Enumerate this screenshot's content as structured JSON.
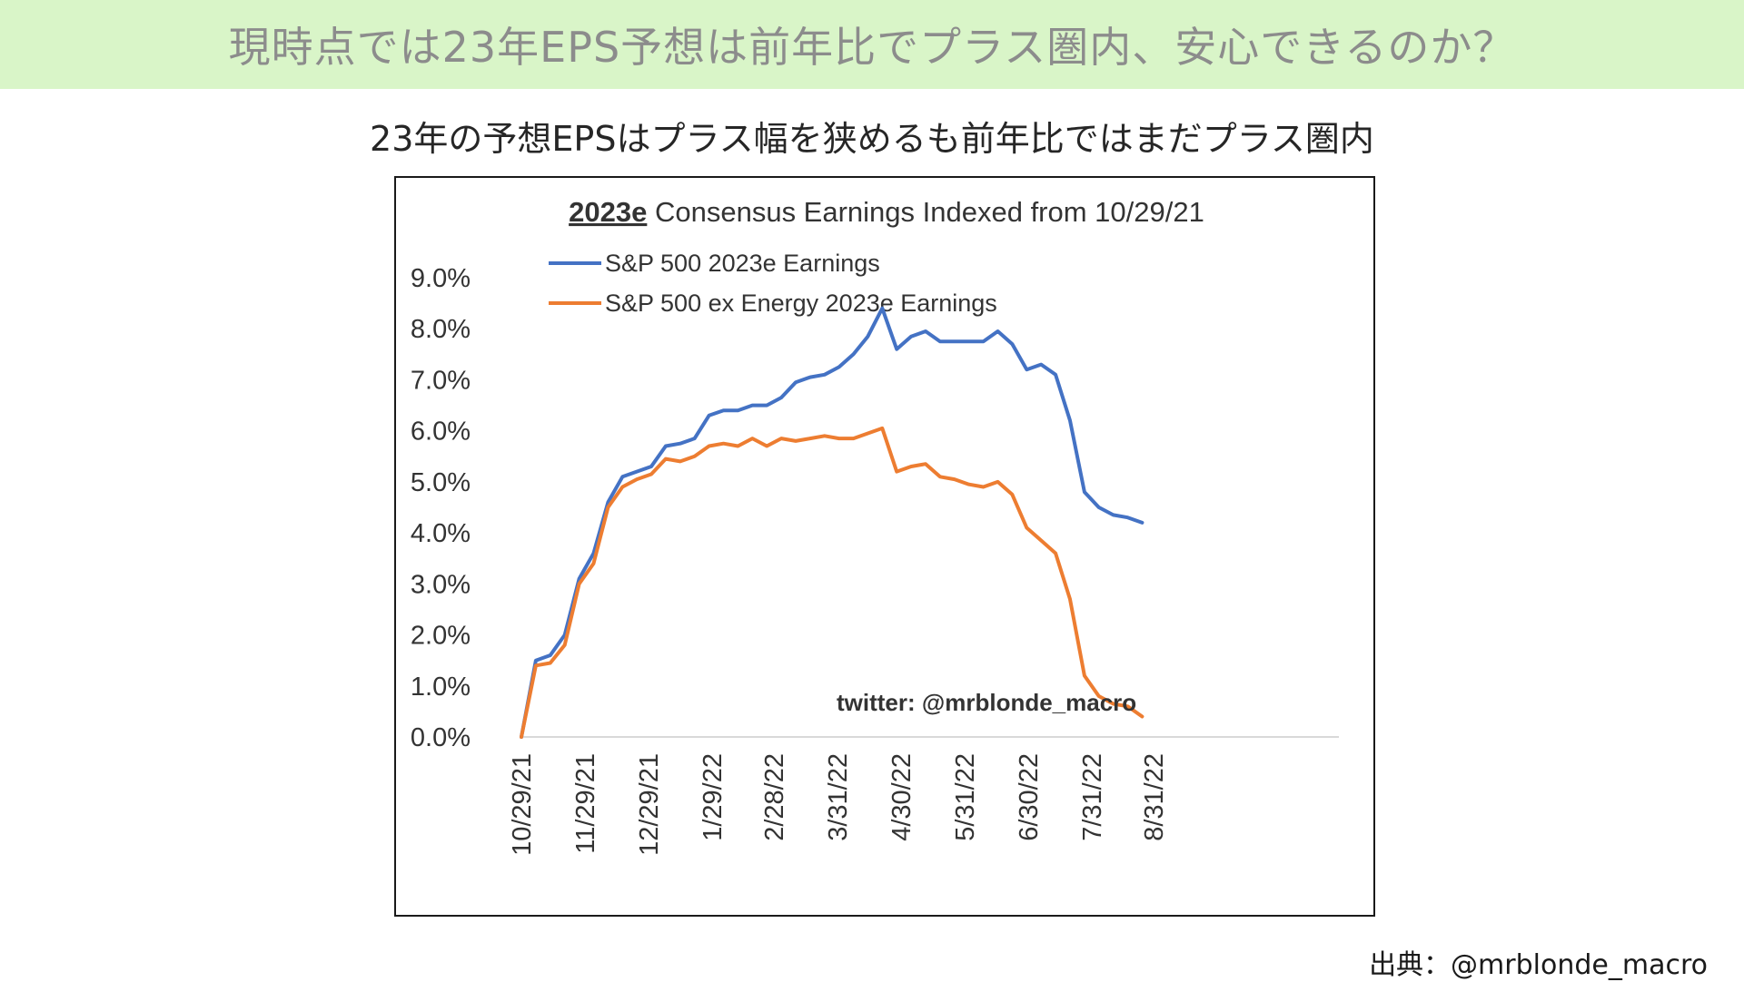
{
  "slide": {
    "banner_title": "現時点では23年EPS予想は前年比でプラス圏内、安心できるのか？",
    "subtitle": "23年の予想EPSはプラス幅を狭めるも前年比ではまだプラス圏内",
    "source": "出典：@mrblonde_macro"
  },
  "chart_data": {
    "type": "line",
    "title_bold": "2023e",
    "title_rest": " Consensus Earnings Indexed from 10/29/21",
    "watermark": "twitter: @mrblonde_macro",
    "x_tick_labels": [
      "10/29/21",
      "11/29/21",
      "12/29/21",
      "1/29/22",
      "2/28/22",
      "3/31/22",
      "4/30/22",
      "5/31/22",
      "6/30/22",
      "7/31/22",
      "8/31/22"
    ],
    "x_tick_index": [
      0,
      4.4,
      8.8,
      13.2,
      17.5,
      21.9,
      26.3,
      30.7,
      35.1,
      39.5,
      43.8
    ],
    "yticks": [
      "0.0%",
      "1.0%",
      "2.0%",
      "3.0%",
      "4.0%",
      "5.0%",
      "6.0%",
      "7.0%",
      "8.0%",
      "9.0%"
    ],
    "ylim": [
      0,
      9
    ],
    "xlim": [
      0,
      47
    ],
    "legend_position": "top-left",
    "series": [
      {
        "name": "S&P 500 2023e Earnings",
        "color": "#4472c4",
        "values": [
          0.0,
          1.5,
          1.6,
          2.0,
          3.1,
          3.6,
          4.6,
          5.1,
          5.2,
          5.3,
          5.7,
          5.75,
          5.85,
          6.3,
          6.4,
          6.4,
          6.5,
          6.5,
          6.65,
          6.95,
          7.05,
          7.1,
          7.25,
          7.5,
          7.85,
          8.4,
          7.6,
          7.85,
          7.95,
          7.75,
          7.75,
          7.75,
          7.75,
          7.95,
          7.7,
          7.2,
          7.3,
          7.1,
          6.2,
          4.8,
          4.5,
          4.35,
          4.3,
          4.2
        ]
      },
      {
        "name": "S&P 500 ex Energy 2023e Earnings",
        "color": "#ed7d31",
        "values": [
          0.0,
          1.4,
          1.45,
          1.8,
          3.0,
          3.4,
          4.5,
          4.9,
          5.05,
          5.15,
          5.45,
          5.4,
          5.5,
          5.7,
          5.75,
          5.7,
          5.85,
          5.7,
          5.85,
          5.8,
          5.85,
          5.9,
          5.85,
          5.85,
          5.95,
          6.05,
          5.2,
          5.3,
          5.35,
          5.1,
          5.05,
          4.95,
          4.9,
          5.0,
          4.75,
          4.1,
          3.85,
          3.6,
          2.7,
          1.2,
          0.8,
          0.65,
          0.6,
          0.4
        ]
      }
    ]
  }
}
